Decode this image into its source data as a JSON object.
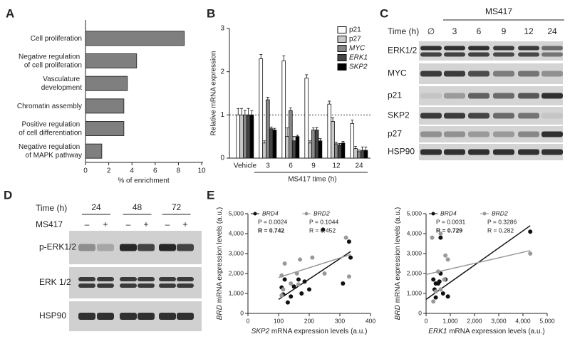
{
  "chart_data": [
    {
      "type": "bar",
      "horizontal": true,
      "panel": "A",
      "categories": [
        "Cell proliferation",
        "Negative regulation\nof cell proliferation",
        "Vasculature\ndevelopment",
        "Chromatin assembly",
        "Positive regulation\nof cell differentiation",
        "Negative regulation\nof MAPK pathway"
      ],
      "values": [
        8.5,
        4.4,
        3.6,
        3.3,
        3.3,
        1.4
      ],
      "color": "#7f7f7f",
      "xlabel": "% of enrichment",
      "xlim": [
        0,
        10
      ],
      "xticks": [
        0,
        2,
        4,
        6,
        8,
        10
      ]
    },
    {
      "type": "grouped",
      "panel": "B",
      "ylabel": "Relative mRNA expression",
      "xlabel": "MS417 time (h)",
      "categories": [
        "Vehicle",
        "3",
        "6",
        "9",
        "12",
        "24"
      ],
      "ylim": [
        0,
        3
      ],
      "yticks": [
        0,
        1,
        2,
        3
      ],
      "hline": 1,
      "series": [
        {
          "name": "p21",
          "color": "#ffffff",
          "italic": false,
          "values": [
            1,
            2.3,
            2.25,
            1.85,
            1.25,
            0.8
          ],
          "errors": [
            0.15,
            0.1,
            0.12,
            0.08,
            0.07,
            0.08
          ]
        },
        {
          "name": "p27",
          "color": "#c8c8c8",
          "italic": false,
          "values": [
            1,
            0.35,
            0.5,
            0.35,
            0.85,
            0.22
          ],
          "errors": [
            0.15,
            0.05,
            0.2,
            0.05,
            0.08,
            0.05
          ]
        },
        {
          "name": "MYC",
          "color": "#888888",
          "italic": true,
          "values": [
            1,
            1.35,
            1.1,
            0.65,
            0.33,
            0.15
          ],
          "errors": [
            0.1,
            0.06,
            0.06,
            0.05,
            0.04,
            0.04
          ]
        },
        {
          "name": "ERK1",
          "color": "#444444",
          "italic": true,
          "values": [
            1,
            0.68,
            0.4,
            0.65,
            0.3,
            0.18
          ],
          "errors": [
            0.15,
            0.04,
            0.1,
            0.06,
            0.04,
            0.08
          ]
        },
        {
          "name": "SKP2",
          "color": "#000000",
          "italic": true,
          "values": [
            1,
            0.65,
            0.5,
            0.4,
            0.35,
            0.18
          ],
          "errors": [
            0.1,
            0.04,
            0.03,
            0.05,
            0.04,
            0.08
          ]
        }
      ]
    },
    {
      "type": "scatter",
      "panel": "E",
      "xlabel": "SKP2 mRNA expression levels (a.u.)",
      "ylabel": "BRD mRNA expression levels (a.u.)",
      "xlim": [
        0,
        400
      ],
      "xticks": [
        0,
        100,
        200,
        300,
        400
      ],
      "ylim": [
        0,
        5000
      ],
      "yticks": [
        0,
        {
          "value": 1000,
          "label": "1,000"
        },
        {
          "value": 2000,
          "label": "2,000"
        },
        {
          "value": 3000,
          "label": "3,000"
        },
        {
          "value": 4000,
          "label": "4,000"
        },
        {
          "value": 5000,
          "label": "5,000"
        }
      ],
      "series": [
        {
          "name": "BRD4",
          "color": "#111111",
          "stats": [
            "P = 0.0024",
            "R = 0.742"
          ],
          "bold_r": true,
          "x": [
            110,
            115,
            120,
            140,
            150,
            165,
            185,
            200,
            130,
            310,
            330,
            335,
            245,
            175
          ],
          "y": [
            1300,
            950,
            1700,
            850,
            1350,
            1700,
            1600,
            1200,
            550,
            1500,
            3600,
            2800,
            4200,
            1000
          ],
          "fit": {
            "x": [
              100,
              335
            ],
            "y": [
              700,
              3100
            ]
          }
        },
        {
          "name": "BRD2",
          "color": "#999999",
          "stats": [
            "P = 0.1044",
            "R = 0.452"
          ],
          "bold_r": false,
          "x": [
            110,
            115,
            140,
            160,
            170,
            210,
            320,
            330,
            120,
            250,
            165,
            110
          ],
          "y": [
            1900,
            1200,
            1500,
            2000,
            2700,
            2800,
            3800,
            1850,
            2500,
            2000,
            1450,
            900
          ],
          "fit": {
            "x": [
              100,
              335
            ],
            "y": [
              1800,
              2950
            ]
          }
        }
      ]
    },
    {
      "type": "scatter",
      "xlabel": "ERK1 mRNA expression levels (a.u.)",
      "ylabel": "BRD mRNA expression levels (a.u.)",
      "xlim": [
        0,
        5000
      ],
      "xticks": [
        0,
        {
          "value": 1000,
          "label": "1,000"
        },
        {
          "value": 2000,
          "label": "2,000"
        },
        {
          "value": 3000,
          "label": "3,000"
        },
        {
          "value": 4000,
          "label": "4,000"
        },
        {
          "value": 5000,
          "label": "5,000"
        }
      ],
      "ylim": [
        0,
        5000
      ],
      "yticks": [
        0,
        {
          "value": 1000,
          "label": "1,000"
        },
        {
          "value": 2000,
          "label": "2,000"
        },
        {
          "value": 3000,
          "label": "3,000"
        },
        {
          "value": 4000,
          "label": "4,000"
        },
        {
          "value": 5000,
          "label": "5,000"
        }
      ],
      "series": [
        {
          "name": "BRD4",
          "color": "#111111",
          "stats": [
            "P = 0.0031",
            "R = 0.729"
          ],
          "bold_r": true,
          "x": [
            300,
            350,
            400,
            500,
            550,
            600,
            700,
            800,
            900,
            400,
            4300,
            600
          ],
          "y": [
            1700,
            1200,
            1500,
            1500,
            1600,
            2000,
            1000,
            1700,
            850,
            800,
            4100,
            3800
          ],
          "fit": {
            "x": [
              0,
              4300
            ],
            "y": [
              700,
              4400
            ]
          }
        },
        {
          "name": "BRD2",
          "color": "#999999",
          "stats": [
            "P = 0.3286",
            "R = 0.282"
          ],
          "bold_r": false,
          "x": [
            250,
            400,
            600,
            750,
            800,
            900,
            500,
            300,
            4300,
            600
          ],
          "y": [
            3800,
            1100,
            4000,
            1700,
            2900,
            2700,
            2100,
            600,
            3000,
            1200
          ],
          "fit": {
            "x": [
              0,
              4300
            ],
            "y": [
              1950,
              3150
            ]
          }
        }
      ]
    }
  ],
  "blots": [
    {
      "panel": "C",
      "header": "MS417",
      "time_label": "Time (h)",
      "lanes": [
        "∅",
        "3",
        "6",
        "9",
        "12",
        "24"
      ],
      "rows": [
        "ERK1/2",
        "MYC",
        "p21",
        "SKP2",
        "p27",
        "HSP90"
      ]
    },
    {
      "panel": "D",
      "time_label": "Time (h)",
      "times": [
        "24",
        "48",
        "72"
      ],
      "treatment_label": "MS417",
      "treatment": [
        "–",
        "+",
        "–",
        "+",
        "–",
        "+"
      ],
      "rows": [
        "p-ERK1/2",
        "ERK 1/2",
        "HSP90"
      ]
    }
  ]
}
